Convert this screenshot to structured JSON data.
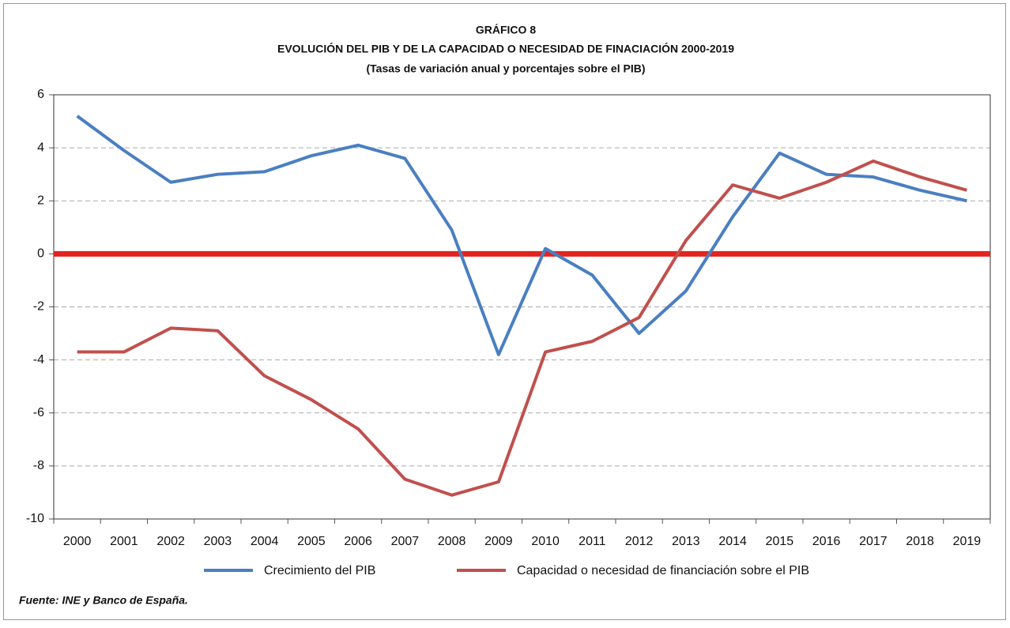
{
  "chart_data": {
    "type": "line",
    "title": "GRÁFICO 8",
    "subtitle": "EVOLUCIÓN DEL PIB Y DE LA CAPACIDAD O NECESIDAD DE FINACIACIÓN 2000-2019",
    "subtitle2": "(Tasas de variación anual y porcentajes sobre el PIB)",
    "source": "Fuente: INE y Banco de España.",
    "categories": [
      "2000",
      "2001",
      "2002",
      "2003",
      "2004",
      "2005",
      "2006",
      "2007",
      "2008",
      "2009",
      "2010",
      "2011",
      "2012",
      "2013",
      "2014",
      "2015",
      "2016",
      "2017",
      "2018",
      "2019"
    ],
    "series": [
      {
        "name": "Crecimiento del PIB",
        "color": "#4a7fc1",
        "values": [
          5.2,
          3.9,
          2.7,
          3.0,
          3.1,
          3.7,
          4.1,
          3.6,
          0.9,
          -3.8,
          0.2,
          -0.8,
          -3.0,
          -1.4,
          1.4,
          3.8,
          3.0,
          2.9,
          2.4,
          2.0
        ]
      },
      {
        "name": "Capacidad o necesidad de financiación sobre el PIB",
        "color": "#c0504d",
        "values": [
          -3.7,
          -3.7,
          -2.8,
          -2.9,
          -4.6,
          -5.5,
          -6.6,
          -8.5,
          -9.1,
          -8.6,
          -3.7,
          -3.3,
          -2.4,
          0.5,
          2.6,
          2.1,
          2.7,
          3.5,
          2.9,
          2.4
        ]
      }
    ],
    "ylim": [
      -10,
      6
    ],
    "yticks": [
      -10,
      -8,
      -6,
      -4,
      -2,
      0,
      2,
      4,
      6
    ],
    "grid": true,
    "zero_line_color": "#e3231f",
    "legend": "bottom"
  }
}
